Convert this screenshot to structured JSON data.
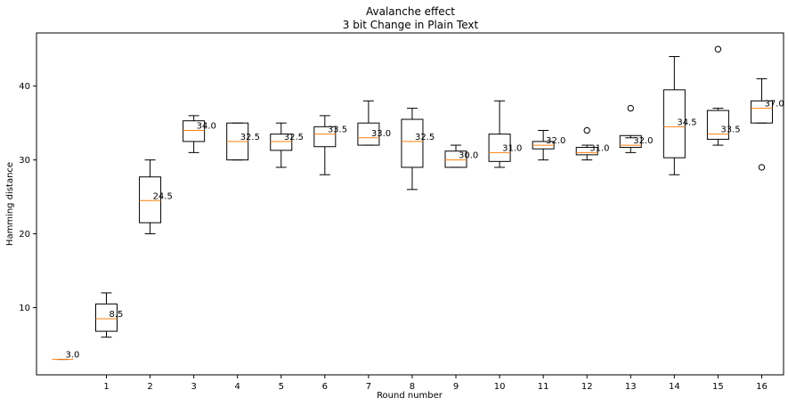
{
  "chart_data": {
    "type": "boxplot",
    "title": "Avalanche effect",
    "subtitle": "3 bit Change in Plain Text",
    "xlabel": "Round number",
    "ylabel": "Hamming distance",
    "xlim": [
      -0.6,
      16.5
    ],
    "ylim": [
      0.9,
      47.2
    ],
    "xticks": [
      {
        "value": 1,
        "label": "1"
      },
      {
        "value": 2,
        "label": "2"
      },
      {
        "value": 3,
        "label": "3"
      },
      {
        "value": 4,
        "label": "4"
      },
      {
        "value": 5,
        "label": "5"
      },
      {
        "value": 6,
        "label": "6"
      },
      {
        "value": 7,
        "label": "7"
      },
      {
        "value": 8,
        "label": "8"
      },
      {
        "value": 9,
        "label": "9"
      },
      {
        "value": 10,
        "label": "10"
      },
      {
        "value": 11,
        "label": "11"
      },
      {
        "value": 12,
        "label": "12"
      },
      {
        "value": 13,
        "label": "13"
      },
      {
        "value": 14,
        "label": "14"
      },
      {
        "value": 15,
        "label": "15"
      },
      {
        "value": 16,
        "label": "16"
      }
    ],
    "yticks": [
      {
        "value": 10,
        "label": "10"
      },
      {
        "value": 20,
        "label": "20"
      },
      {
        "value": 30,
        "label": "30"
      },
      {
        "value": 40,
        "label": "40"
      }
    ],
    "grid": false,
    "colors": {
      "box": "#000000",
      "median": "#ff7f0e",
      "background": "#ffffff"
    },
    "boxes": [
      {
        "x": 0,
        "wlo": 3,
        "q1": 3,
        "median": 3,
        "q3": 3,
        "whi": 3,
        "outliers": [],
        "label": "3.0"
      },
      {
        "x": 1,
        "wlo": 6,
        "q1": 6.8,
        "median": 8.5,
        "q3": 10.5,
        "whi": 12,
        "outliers": [],
        "label": "8.5"
      },
      {
        "x": 2,
        "wlo": 20,
        "q1": 21.5,
        "median": 24.5,
        "q3": 27.7,
        "whi": 30,
        "outliers": [],
        "label": "24.5"
      },
      {
        "x": 3,
        "wlo": 31,
        "q1": 32.5,
        "median": 34,
        "q3": 35.3,
        "whi": 36,
        "outliers": [],
        "label": "34.0"
      },
      {
        "x": 4,
        "wlo": 30,
        "q1": 30,
        "median": 32.5,
        "q3": 35,
        "whi": 35,
        "outliers": [],
        "label": "32.5"
      },
      {
        "x": 5,
        "wlo": 29,
        "q1": 31.3,
        "median": 32.5,
        "q3": 33.5,
        "whi": 35,
        "outliers": [],
        "label": "32.5"
      },
      {
        "x": 6,
        "wlo": 28,
        "q1": 31.8,
        "median": 33.5,
        "q3": 34.5,
        "whi": 36,
        "outliers": [],
        "label": "33.5"
      },
      {
        "x": 7,
        "wlo": 32,
        "q1": 32,
        "median": 33,
        "q3": 35,
        "whi": 38,
        "outliers": [],
        "label": "33.0"
      },
      {
        "x": 8,
        "wlo": 26,
        "q1": 29,
        "median": 32.5,
        "q3": 35.5,
        "whi": 37,
        "outliers": [],
        "label": "32.5"
      },
      {
        "x": 9,
        "wlo": 29,
        "q1": 29,
        "median": 30,
        "q3": 31.2,
        "whi": 32,
        "outliers": [],
        "label": "30.0"
      },
      {
        "x": 10,
        "wlo": 29,
        "q1": 29.8,
        "median": 31,
        "q3": 33.5,
        "whi": 38,
        "outliers": [],
        "label": "31.0"
      },
      {
        "x": 11,
        "wlo": 30,
        "q1": 31.5,
        "median": 32,
        "q3": 32.5,
        "whi": 34,
        "outliers": [],
        "label": "32.0"
      },
      {
        "x": 12,
        "wlo": 30,
        "q1": 30.7,
        "median": 31,
        "q3": 31.7,
        "whi": 32,
        "outliers": [
          34
        ],
        "label": "31.0"
      },
      {
        "x": 13,
        "wlo": 31,
        "q1": 31.7,
        "median": 32,
        "q3": 33.3,
        "whi": 33,
        "outliers": [
          37
        ],
        "label": "32.0"
      },
      {
        "x": 14,
        "wlo": 28,
        "q1": 30.3,
        "median": 34.5,
        "q3": 39.5,
        "whi": 44,
        "outliers": [],
        "label": "34.5"
      },
      {
        "x": 15,
        "wlo": 32,
        "q1": 32.8,
        "median": 33.5,
        "q3": 36.7,
        "whi": 37,
        "outliers": [
          45
        ],
        "label": "33.5"
      },
      {
        "x": 16,
        "wlo": 35,
        "q1": 35,
        "median": 37,
        "q3": 38,
        "whi": 41,
        "outliers": [
          29
        ],
        "label": "37.0"
      }
    ]
  }
}
